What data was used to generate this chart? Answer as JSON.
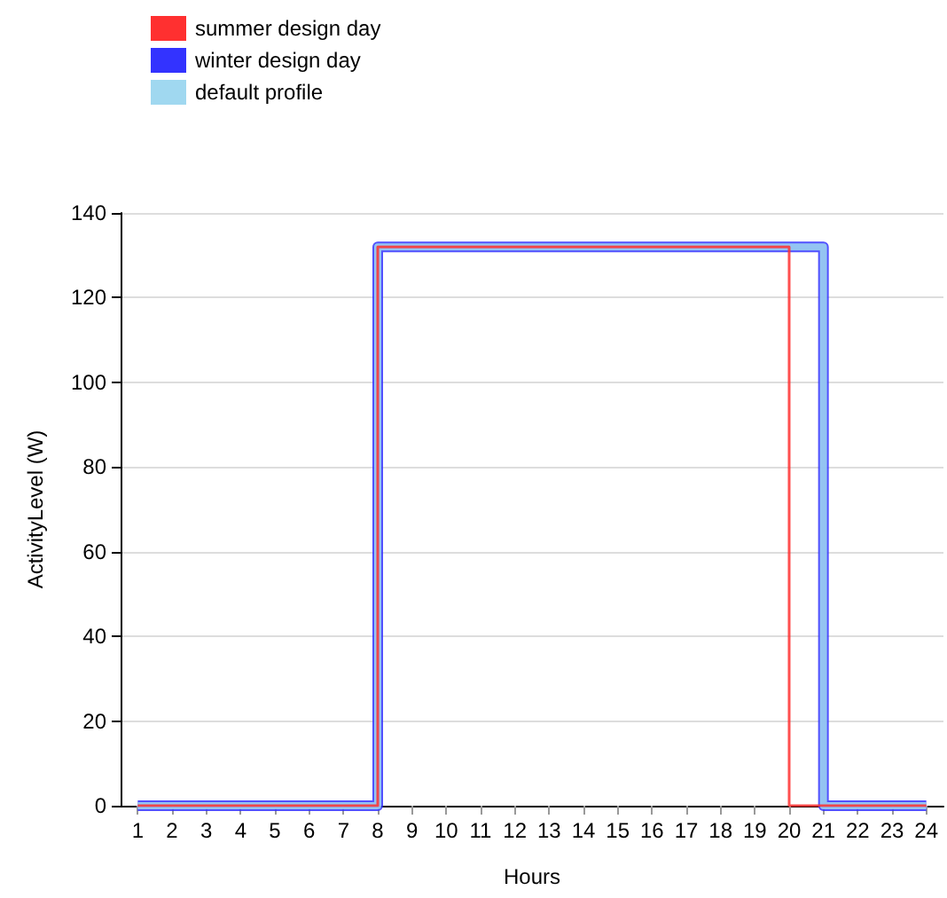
{
  "chart_data": {
    "type": "step",
    "xlabel": "Hours",
    "ylabel": "ActivityLevel (W)",
    "x": [
      1,
      2,
      3,
      4,
      5,
      6,
      7,
      8,
      9,
      10,
      11,
      12,
      13,
      14,
      15,
      16,
      17,
      18,
      19,
      20,
      21,
      22,
      23,
      24
    ],
    "series": [
      {
        "name": "summer design day",
        "color": "#ff3030",
        "values": [
          0,
          0,
          0,
          0,
          0,
          0,
          0,
          132,
          132,
          132,
          132,
          132,
          132,
          132,
          132,
          132,
          132,
          132,
          132,
          0,
          0,
          0,
          0,
          0
        ]
      },
      {
        "name": "winter design day",
        "color": "#3333ff",
        "values": [
          0,
          0,
          0,
          0,
          0,
          0,
          0,
          132,
          132,
          132,
          132,
          132,
          132,
          132,
          132,
          132,
          132,
          132,
          132,
          132,
          0,
          0,
          0,
          0
        ]
      },
      {
        "name": "default profile",
        "color": "#a0d8f0",
        "values": [
          0,
          0,
          0,
          0,
          0,
          0,
          0,
          132,
          132,
          132,
          132,
          132,
          132,
          132,
          132,
          132,
          132,
          132,
          132,
          132,
          0,
          0,
          0,
          0
        ]
      }
    ],
    "xlim": [
      0.5,
      24.5
    ],
    "xticks": [
      1,
      2,
      3,
      4,
      5,
      6,
      7,
      8,
      9,
      10,
      11,
      12,
      13,
      14,
      15,
      16,
      17,
      18,
      19,
      20,
      21,
      22,
      23,
      24
    ],
    "ylim": [
      0,
      140
    ],
    "yticks": [
      0,
      20,
      40,
      60,
      80,
      100,
      120,
      140
    ],
    "grid": "y",
    "legend": "top left",
    "marker": "none"
  }
}
